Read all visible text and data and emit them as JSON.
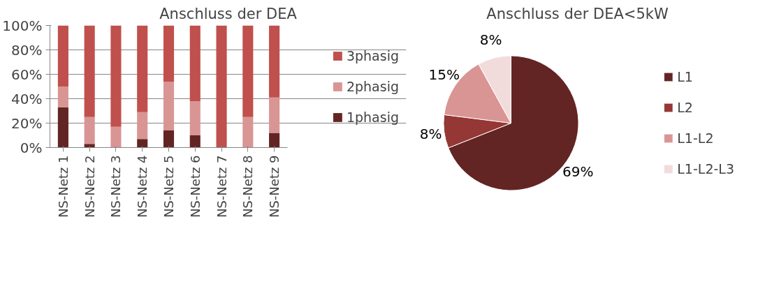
{
  "chart_data": [
    {
      "type": "bar",
      "title": "Anschluss der DEA",
      "stacked": true,
      "categories": [
        "NS-Netz 1",
        "NS-Netz 2",
        "NS-Netz 3",
        "NS-Netz 4",
        "NS-Netz 5",
        "NS-Netz 6",
        "NS-Netz 7",
        "NS-Netz 8",
        "NS-Netz 9"
      ],
      "series": [
        {
          "name": "1phasig",
          "color": "#632523",
          "values": [
            33,
            3,
            0,
            7,
            14,
            10,
            0,
            0,
            12
          ]
        },
        {
          "name": "2phasig",
          "color": "#d99594",
          "values": [
            17,
            22,
            17,
            22,
            40,
            28,
            0,
            25,
            29
          ]
        },
        {
          "name": "3phasig",
          "color": "#c0504d",
          "values": [
            50,
            75,
            83,
            71,
            46,
            62,
            100,
            75,
            59
          ]
        }
      ],
      "ylim": [
        0,
        100
      ],
      "yticks": [
        {
          "value": 0,
          "label": "0%"
        },
        {
          "value": 20,
          "label": "20%"
        },
        {
          "value": 40,
          "label": "40%"
        },
        {
          "value": 60,
          "label": "60%"
        },
        {
          "value": 80,
          "label": "80%"
        },
        {
          "value": 100,
          "label": "100%"
        }
      ],
      "grid": "y",
      "legend": "right"
    },
    {
      "type": "pie",
      "title": "Anschluss der DEA<5kW",
      "categories": [
        "L1",
        "L2",
        "L1-L2",
        "L1-L2-L3"
      ],
      "values": [
        69,
        8,
        15,
        8
      ],
      "colors": [
        "#632523",
        "#953735",
        "#d99594",
        "#f2dcdb"
      ],
      "value_labels": [
        "69%",
        "8%",
        "15%",
        "8%"
      ],
      "legend": "right"
    }
  ]
}
